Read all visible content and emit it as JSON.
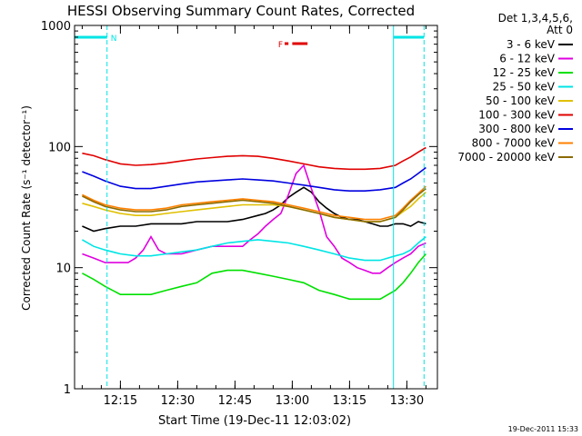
{
  "chart_data": {
    "type": "line",
    "title": "HESSI Observing Summary Count Rates, Corrected",
    "xlabel": "Start Time (19-Dec-11 12:03:02)",
    "ylabel": "Corrected Count Rate (s⁻¹ detector⁻¹)",
    "ylog": true,
    "ylim": [
      1,
      1000
    ],
    "xlim_minutes": [
      0,
      95
    ],
    "x_ticks": [
      {
        "label": "12:15",
        "t": 12
      },
      {
        "label": "12:30",
        "t": 27
      },
      {
        "label": "12:45",
        "t": 42
      },
      {
        "label": "13:00",
        "t": 57
      },
      {
        "label": "13:15",
        "t": 72
      },
      {
        "label": "13:30",
        "t": 87
      }
    ],
    "y_ticks": [
      {
        "label": "1",
        "v": 1
      },
      {
        "label": "10",
        "v": 10
      },
      {
        "label": "100",
        "v": 100
      },
      {
        "label": "1000",
        "v": 1000
      }
    ],
    "legend_header": [
      "Det 1,3,4,5,6,",
      "Att 0"
    ],
    "legend_position": "right",
    "footer_date": "19-Dec-2011 15:33",
    "annotations": [
      {
        "label": "N",
        "color": "#00e5e5"
      },
      {
        "label": "F",
        "color": "#e00000"
      }
    ],
    "night_bars": [
      {
        "t0": 0,
        "t1": 8.5,
        "flag_label": "N"
      },
      {
        "t0": 83.5,
        "t1": 91.5
      }
    ],
    "flare_bar": {
      "t0": 55,
      "t1": 61,
      "label": "F"
    },
    "series": [
      {
        "name": "3 - 6 keV",
        "color": "#000000",
        "x": [
          2,
          5,
          8,
          12,
          16,
          20,
          24,
          28,
          32,
          36,
          40,
          44,
          48,
          50,
          52,
          54,
          56,
          58,
          60,
          62,
          64,
          66,
          68,
          70,
          72,
          74,
          76,
          78,
          80,
          82,
          84,
          86,
          88,
          90,
          92
        ],
        "y": [
          22,
          20,
          21,
          22,
          22,
          23,
          23,
          23,
          24,
          24,
          24,
          25,
          27,
          28,
          30,
          33,
          38,
          42,
          46,
          42,
          35,
          31,
          28,
          26,
          25,
          25,
          24,
          23,
          22,
          22,
          23,
          23,
          22,
          24,
          23
        ]
      },
      {
        "name": "6 - 12 keV",
        "color": "#e000e0",
        "x": [
          2,
          5,
          8,
          12,
          14,
          16,
          18,
          20,
          22,
          24,
          28,
          32,
          36,
          40,
          44,
          46,
          48,
          50,
          52,
          54,
          56,
          58,
          60,
          62,
          64,
          66,
          68,
          70,
          72,
          74,
          76,
          78,
          80,
          82,
          84,
          86,
          88,
          90,
          92
        ],
        "y": [
          13,
          12,
          11,
          11,
          11,
          12,
          14,
          18,
          14,
          13,
          13,
          14,
          15,
          15,
          15,
          17,
          19,
          22,
          25,
          28,
          40,
          60,
          70,
          45,
          30,
          18,
          15,
          12,
          11,
          10,
          9.5,
          9,
          9,
          10,
          11,
          12,
          13,
          15,
          16
        ]
      },
      {
        "name": "12 - 25 keV",
        "color": "#00e000",
        "x": [
          2,
          5,
          8,
          12,
          16,
          20,
          24,
          28,
          32,
          36,
          40,
          44,
          48,
          52,
          56,
          60,
          64,
          68,
          72,
          76,
          80,
          84,
          86,
          88,
          90,
          92
        ],
        "y": [
          9,
          8,
          7,
          6,
          6,
          6,
          6.5,
          7,
          7.5,
          9,
          9.5,
          9.5,
          9,
          8.5,
          8,
          7.5,
          6.5,
          6,
          5.5,
          5.5,
          5.5,
          6.5,
          7.5,
          9,
          11,
          13
        ]
      },
      {
        "name": "25 - 50 keV",
        "color": "#00e5e5",
        "x": [
          2,
          5,
          8,
          12,
          16,
          20,
          24,
          28,
          32,
          36,
          40,
          44,
          48,
          52,
          56,
          60,
          64,
          68,
          72,
          76,
          80,
          84,
          86,
          88,
          90,
          92
        ],
        "y": [
          17,
          15,
          14,
          13,
          12.5,
          12.5,
          13,
          13.5,
          14,
          15,
          16,
          16.5,
          17,
          16.5,
          16,
          15,
          14,
          13,
          12,
          11.5,
          11.5,
          12.5,
          13,
          14,
          16,
          18
        ]
      },
      {
        "name": "50 - 100 keV",
        "color": "#e0c000",
        "x": [
          2,
          5,
          8,
          12,
          16,
          20,
          24,
          28,
          32,
          36,
          40,
          44,
          48,
          52,
          56,
          60,
          64,
          68,
          72,
          76,
          80,
          84,
          86,
          88,
          90,
          92
        ],
        "y": [
          34,
          32,
          30,
          28,
          27,
          27,
          28,
          29,
          30,
          31,
          32,
          33,
          33,
          33,
          32,
          30,
          28,
          26,
          25,
          24,
          24,
          26,
          29,
          32,
          37,
          42
        ]
      },
      {
        "name": "100 - 300 keV",
        "color": "#e00000",
        "x": [
          2,
          5,
          8,
          12,
          16,
          20,
          24,
          28,
          32,
          36,
          40,
          44,
          48,
          52,
          56,
          60,
          64,
          68,
          72,
          76,
          80,
          84,
          86,
          88,
          90,
          92
        ],
        "y": [
          88,
          84,
          78,
          72,
          70,
          71,
          73,
          76,
          79,
          81,
          83,
          84,
          83,
          80,
          76,
          72,
          68,
          66,
          65,
          65,
          66,
          70,
          76,
          82,
          90,
          98
        ]
      },
      {
        "name": "300 - 800 keV",
        "color": "#0000e0",
        "x": [
          2,
          5,
          8,
          12,
          16,
          20,
          24,
          28,
          32,
          36,
          40,
          44,
          48,
          52,
          56,
          60,
          64,
          68,
          72,
          76,
          80,
          84,
          86,
          88,
          90,
          92
        ],
        "y": [
          62,
          57,
          52,
          47,
          45,
          45,
          47,
          49,
          51,
          52,
          53,
          54,
          53,
          52,
          50,
          48,
          46,
          44,
          43,
          43,
          44,
          46,
          50,
          54,
          60,
          67
        ]
      },
      {
        "name": "800 - 7000 keV",
        "color": "#ff8000",
        "x": [
          2,
          5,
          8,
          12,
          16,
          20,
          24,
          28,
          32,
          36,
          40,
          44,
          48,
          52,
          56,
          60,
          64,
          68,
          72,
          76,
          80,
          84,
          86,
          88,
          90,
          92
        ],
        "y": [
          40,
          36,
          33,
          31,
          30,
          30,
          31,
          33,
          34,
          35,
          36,
          37,
          36,
          35,
          33,
          31,
          29,
          27,
          26,
          25,
          25,
          27,
          31,
          36,
          41,
          47
        ]
      },
      {
        "name": "7000 - 20000 keV",
        "color": "#8b6b00",
        "x": [
          2,
          5,
          8,
          12,
          16,
          20,
          24,
          28,
          32,
          36,
          40,
          44,
          48,
          52,
          56,
          60,
          64,
          68,
          72,
          76,
          80,
          84,
          86,
          88,
          90,
          92
        ],
        "y": [
          39,
          35,
          32,
          30,
          29,
          29,
          30,
          32,
          33,
          34,
          35,
          36,
          35,
          34,
          32,
          30,
          28,
          26,
          25,
          24,
          24,
          26,
          30,
          35,
          40,
          45
        ]
      }
    ]
  }
}
